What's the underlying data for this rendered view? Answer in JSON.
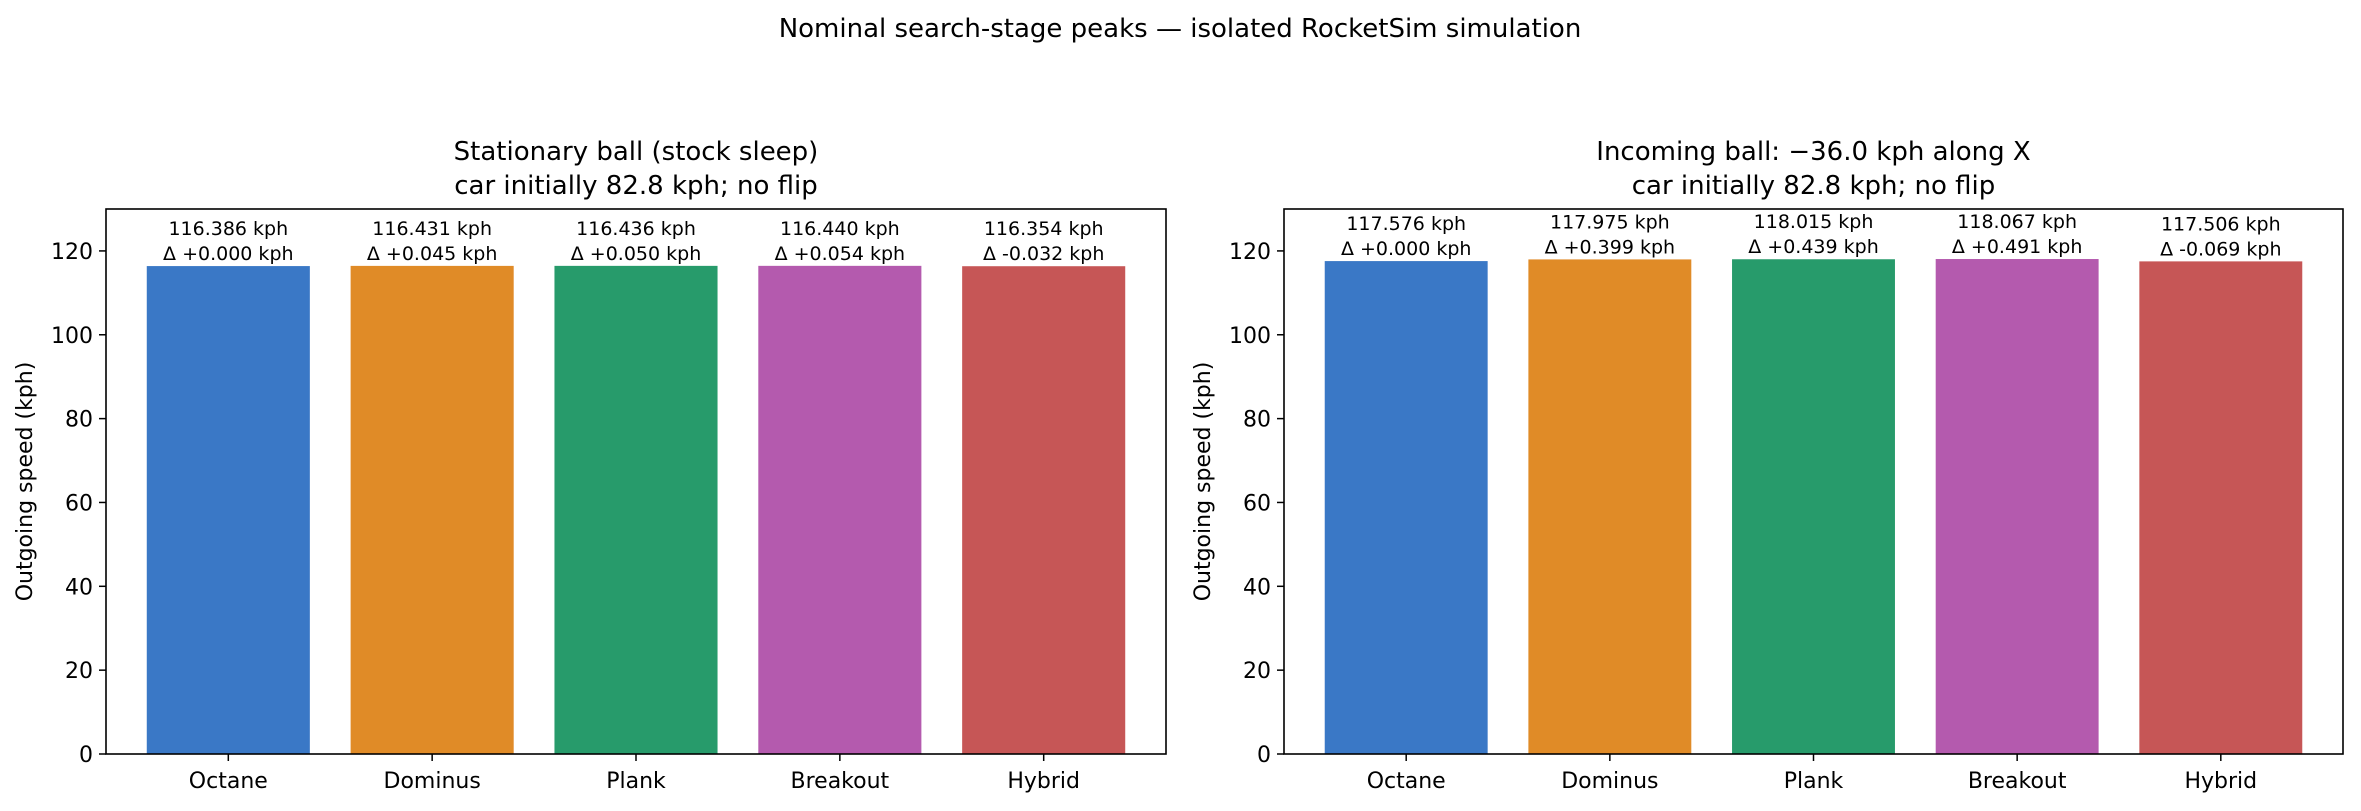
{
  "suptitle": "Nominal search-stage peaks — isolated RocketSim simulation",
  "colors": {
    "Octane": "#3a78c6",
    "Dominus": "#e08b27",
    "Plank": "#279b6b",
    "Breakout": "#b45aae",
    "Hybrid": "#c65656"
  },
  "chart_data": [
    {
      "type": "bar",
      "title_lines": [
        "Stationary ball (stock sleep)",
        "car initially 82.8 kph; no flip"
      ],
      "xlabel": "",
      "ylabel": "Outgoing speed (kph)",
      "ylim": [
        0,
        130
      ],
      "yticks": [
        0,
        20,
        40,
        60,
        80,
        100,
        120
      ],
      "grid": false,
      "categories": [
        "Octane",
        "Dominus",
        "Plank",
        "Breakout",
        "Hybrid"
      ],
      "values": [
        116.386,
        116.431,
        116.436,
        116.44,
        116.354
      ],
      "value_labels": [
        "116.386 kph",
        "116.431 kph",
        "116.436 kph",
        "116.440 kph",
        "116.354 kph"
      ],
      "delta_labels": [
        "Δ +0.000 kph",
        "Δ +0.045 kph",
        "Δ +0.050 kph",
        "Δ +0.054 kph",
        "Δ -0.032 kph"
      ]
    },
    {
      "type": "bar",
      "title_lines": [
        "Incoming ball: −36.0 kph along X",
        "car initially 82.8 kph; no flip"
      ],
      "xlabel": "",
      "ylabel": "Outgoing speed (kph)",
      "ylim": [
        0,
        130
      ],
      "yticks": [
        0,
        20,
        40,
        60,
        80,
        100,
        120
      ],
      "grid": false,
      "categories": [
        "Octane",
        "Dominus",
        "Plank",
        "Breakout",
        "Hybrid"
      ],
      "values": [
        117.576,
        117.975,
        118.015,
        118.067,
        117.506
      ],
      "value_labels": [
        "117.576 kph",
        "117.975 kph",
        "118.015 kph",
        "118.067 kph",
        "117.506 kph"
      ],
      "delta_labels": [
        "Δ +0.000 kph",
        "Δ +0.399 kph",
        "Δ +0.439 kph",
        "Δ +0.491 kph",
        "Δ -0.069 kph"
      ]
    }
  ]
}
